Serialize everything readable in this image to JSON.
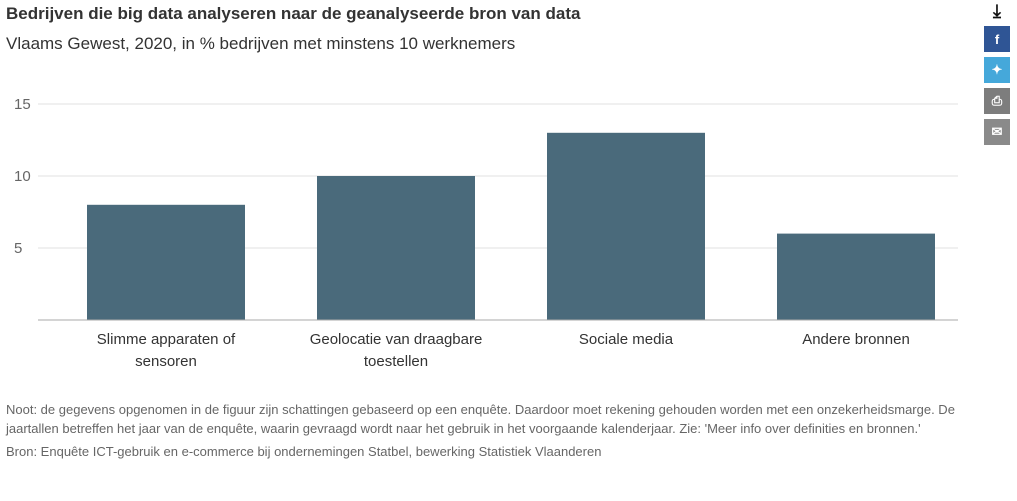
{
  "title": "Bedrijven die big data analyseren naar de geanalyseerde bron van data",
  "subtitle": "Vlaams Gewest, 2020, in % bedrijven met minstens 10 werknemers",
  "note": "Noot: de gegevens opgenomen in de figuur zijn schattingen gebaseerd op een enquête. Daardoor moet rekening gehouden worden met een onzekerheidsmarge. De jaartallen betreffen het jaar van de enquête, waarin gevraagd wordt naar het gebruik in het voorgaande kalenderjaar. Zie: 'Meer info over definities en bronnen.'",
  "source": "Bron: Enquête ICT-gebruik en e-commerce bij ondernemingen Statbel, bewerking Statistiek Vlaanderen",
  "icons": {
    "download": "download-icon",
    "facebook": "f",
    "twitter": "twitter-icon",
    "print": "print-icon",
    "mail": "mail-icon"
  },
  "colors": {
    "bar": "#4a6a7b",
    "grid": "#e0e0e0",
    "axis": "#aaaaaa"
  },
  "chart_data": {
    "type": "bar",
    "categories": [
      [
        "Slimme apparaten of",
        "sensoren"
      ],
      [
        "Geolocatie van draagbare",
        "toestellen"
      ],
      [
        "Sociale media"
      ],
      [
        "Andere bronnen"
      ]
    ],
    "values": [
      8,
      10,
      13,
      6
    ],
    "yticks": [
      "5",
      "10",
      "15"
    ],
    "ylim": [
      0,
      15
    ],
    "xlabel": "",
    "ylabel": "",
    "grid": true
  }
}
